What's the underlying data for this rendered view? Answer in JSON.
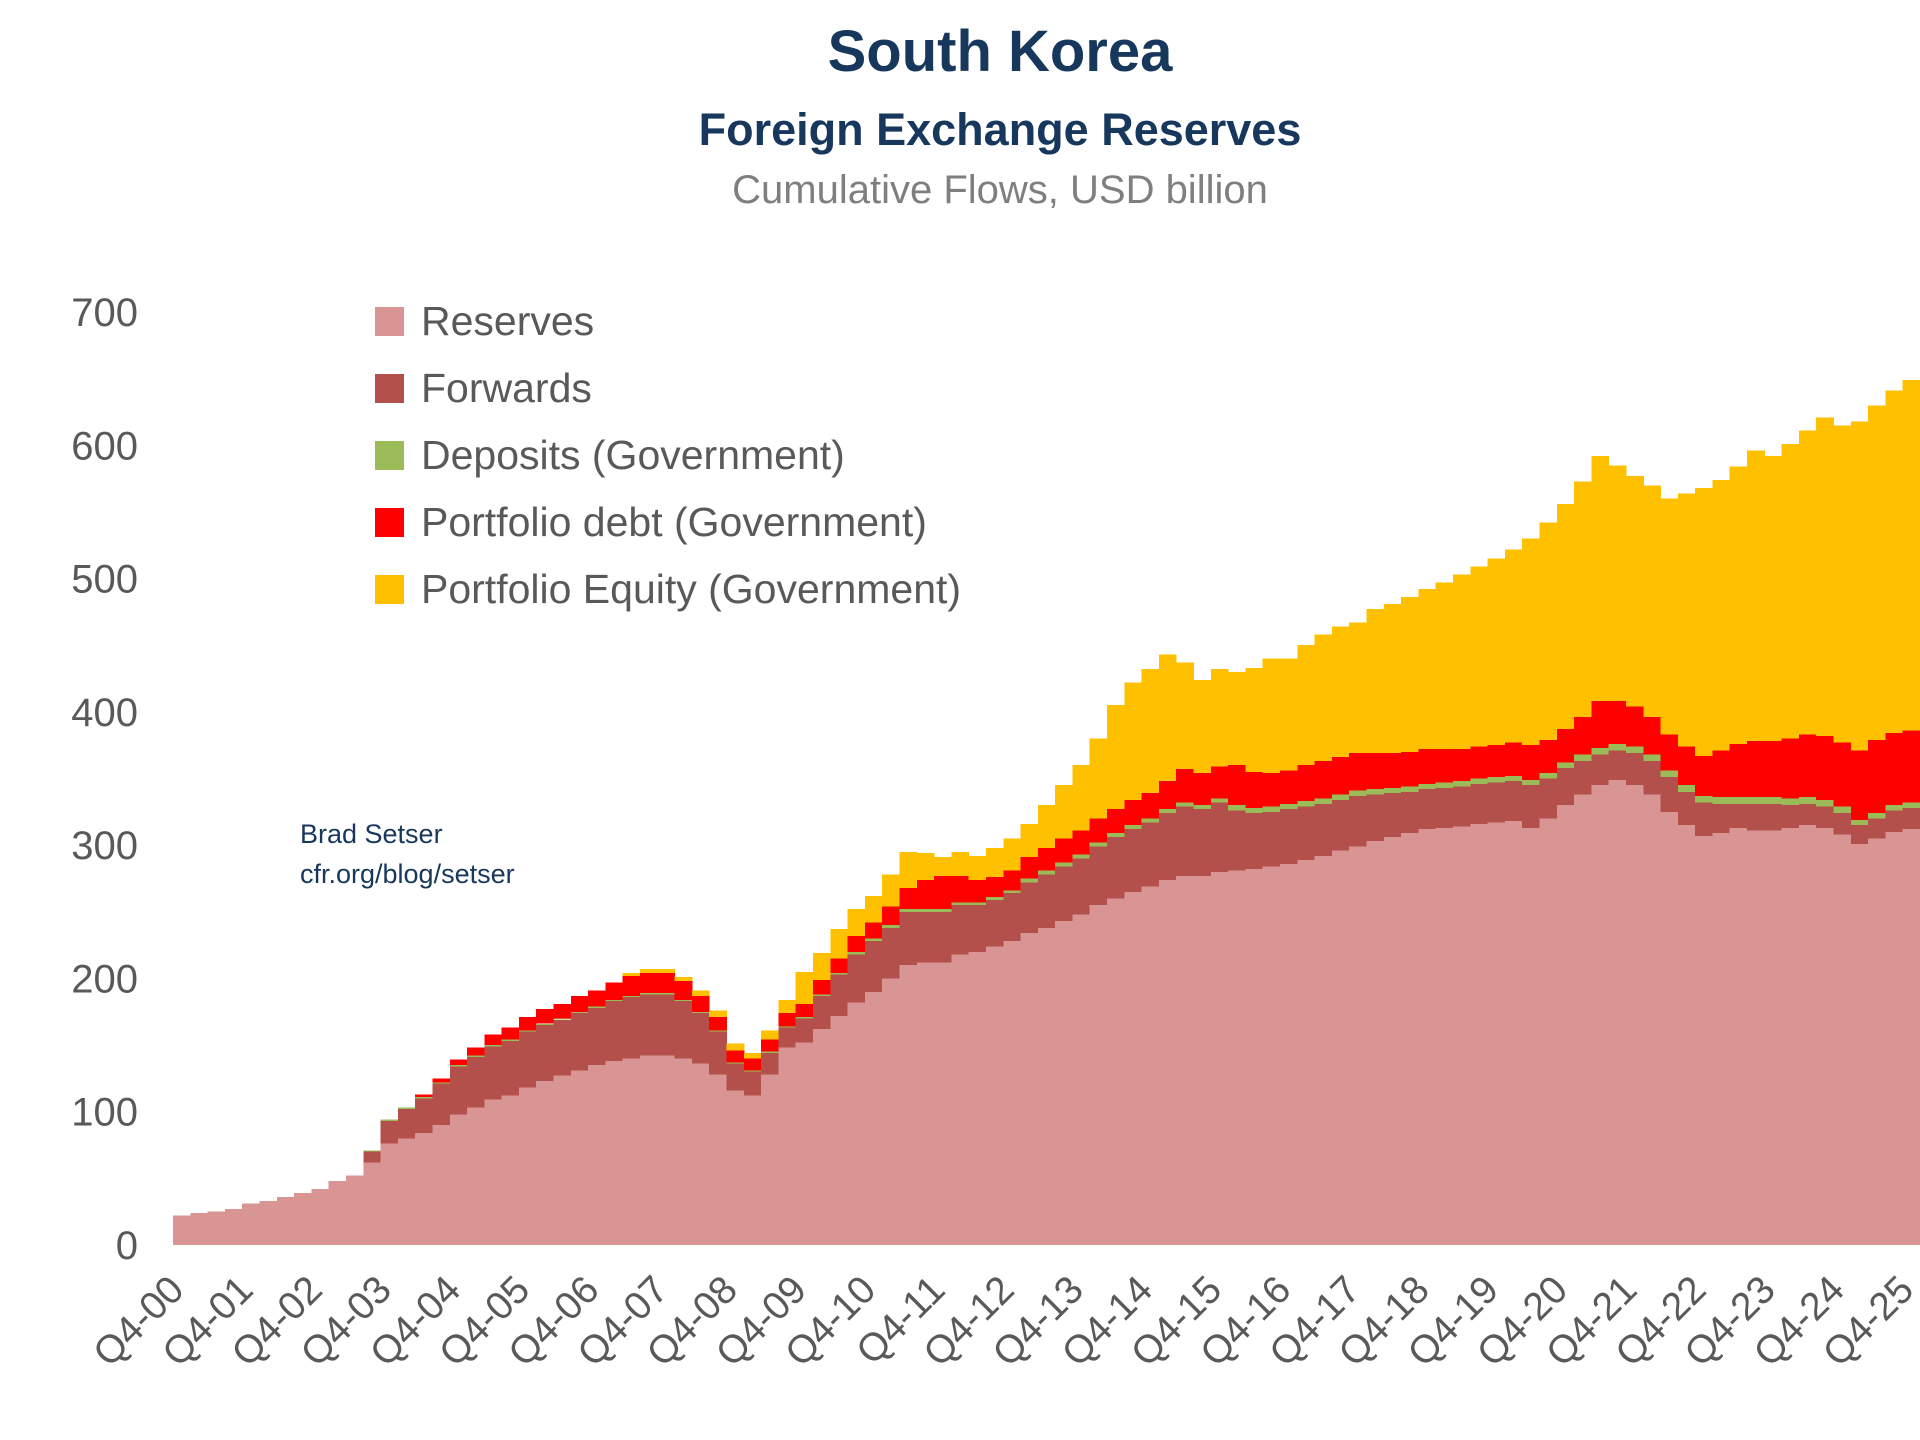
{
  "colors": {
    "background": "#FFFFFF",
    "title_text": "#17375D",
    "axis_text": "#595959",
    "legend_text": "#595959",
    "units_text": "#7F7F7F",
    "annotation_text": "#17375D"
  },
  "annotation": {
    "line1": "Brad Setser",
    "line2": "cfr.org/blog/setser"
  },
  "chart_data": {
    "type": "bar",
    "stacked": true,
    "title": "South Korea",
    "subtitle": "Foreign Exchange Reserves",
    "units_label": "Cumulative Flows, USD billion",
    "grid": false,
    "legend_position": "upper-left-inside",
    "x_axis": {
      "start": "Q4-2000",
      "end": "Q4-2025",
      "frequency": "quarterly",
      "n_bars": 101,
      "tick_every_n_bars": 4,
      "tick_labels": [
        "Q4-00",
        "Q4-01",
        "Q4-02",
        "Q4-03",
        "Q4-04",
        "Q4-05",
        "Q4-06",
        "Q4-07",
        "Q4-08",
        "Q4-09",
        "Q4-10",
        "Q4-11",
        "Q4-12",
        "Q4-13",
        "Q4-14",
        "Q4-15",
        "Q4-16",
        "Q4-17",
        "Q4-18",
        "Q4-19",
        "Q4-20",
        "Q4-21",
        "Q4-22",
        "Q4-23",
        "Q4-24",
        "Q4-25"
      ]
    },
    "y_axis": {
      "min": 0,
      "max": 700,
      "tick_interval": 100,
      "ticks": [
        0,
        100,
        200,
        300,
        400,
        500,
        600,
        700
      ]
    },
    "series": [
      {
        "name": "Reserves",
        "color": "#D99594",
        "values": [
          22,
          24,
          25,
          27,
          31,
          33,
          36,
          39,
          42,
          48,
          52,
          62,
          76,
          80,
          84,
          90,
          98,
          103,
          109,
          112,
          118,
          123,
          127,
          131,
          135,
          138,
          140,
          142,
          142,
          140,
          136,
          128,
          116,
          112,
          128,
          148,
          152,
          162,
          172,
          182,
          190,
          200,
          210,
          212,
          212,
          218,
          220,
          224,
          228,
          234,
          238,
          243,
          248,
          255,
          260,
          265,
          269,
          274,
          277,
          277,
          280,
          281,
          282,
          284,
          286,
          289,
          292,
          296,
          299,
          303,
          306,
          309,
          312,
          313,
          314,
          316,
          317,
          318,
          313,
          320,
          330,
          338,
          345,
          349,
          345,
          338,
          325,
          315,
          307,
          309,
          313,
          311,
          311,
          313,
          315,
          313,
          308,
          301,
          305,
          310,
          312
        ]
      },
      {
        "name": "Forwards",
        "color": "#B4504B",
        "values": [
          0,
          0,
          0,
          0,
          0,
          0,
          0,
          0,
          0,
          0,
          0,
          8,
          17,
          22,
          26,
          31,
          36,
          38,
          40,
          41,
          42,
          42,
          42,
          43,
          43,
          45,
          46,
          46,
          46,
          43,
          38,
          32,
          20,
          18,
          16,
          15,
          18,
          25,
          31,
          36,
          38,
          38,
          40,
          38,
          38,
          37,
          35,
          35,
          36,
          38,
          40,
          41,
          42,
          44,
          46,
          47,
          48,
          50,
          52,
          50,
          52,
          45,
          42,
          41,
          41,
          40,
          39,
          38,
          38,
          35,
          33,
          31,
          30,
          30,
          30,
          30,
          30,
          30,
          32,
          30,
          28,
          25,
          23,
          22,
          24,
          25,
          26,
          25,
          25,
          22,
          18,
          20,
          20,
          17,
          16,
          16,
          16,
          14,
          15,
          16,
          16
        ]
      },
      {
        "name": "Deposits (Government)",
        "color": "#9BBB59",
        "values": [
          0,
          0,
          0,
          0,
          0,
          0,
          0,
          0,
          0,
          0,
          0,
          1,
          1,
          1,
          1,
          1,
          1,
          1,
          1,
          1,
          1,
          1,
          1,
          1,
          1,
          1,
          1,
          1,
          1,
          1,
          1,
          1,
          1,
          1,
          1,
          1,
          1,
          1,
          1,
          2,
          2,
          2,
          2,
          2,
          2,
          2,
          2,
          2,
          2,
          3,
          3,
          3,
          3,
          3,
          3,
          3,
          3,
          3,
          3,
          3,
          3,
          4,
          4,
          4,
          4,
          4,
          4,
          4,
          4,
          4,
          4,
          4,
          4,
          4,
          4,
          4,
          4,
          4,
          4,
          4,
          4,
          5,
          5,
          5,
          5,
          5,
          5,
          5,
          5,
          5,
          5,
          5,
          5,
          5,
          5,
          5,
          5,
          4,
          4,
          4,
          4
        ]
      },
      {
        "name": "Portfolio debt (Government)",
        "color": "#FF0000",
        "values": [
          0,
          0,
          0,
          0,
          0,
          0,
          0,
          0,
          0,
          0,
          0,
          0,
          0,
          0,
          2,
          3,
          4,
          6,
          8,
          9,
          10,
          11,
          11,
          12,
          12,
          13,
          15,
          15,
          15,
          14,
          12,
          10,
          9,
          9,
          9,
          10,
          10,
          11,
          11,
          12,
          12,
          14,
          16,
          22,
          25,
          20,
          17,
          15,
          15,
          16,
          17,
          18,
          18,
          18,
          18,
          19,
          19,
          21,
          25,
          24,
          24,
          30,
          27,
          25,
          25,
          27,
          28,
          28,
          28,
          27,
          26,
          26,
          26,
          25,
          24,
          24,
          24,
          25,
          26,
          25,
          25,
          28,
          35,
          32,
          30,
          28,
          27,
          29,
          30,
          35,
          40,
          42,
          42,
          45,
          47,
          48,
          48,
          52,
          55,
          54,
          54
        ]
      },
      {
        "name": "Portfolio Equity (Government)",
        "color": "#FFC000",
        "values": [
          0,
          0,
          0,
          0,
          0,
          0,
          0,
          0,
          0,
          0,
          0,
          0,
          0,
          0,
          0,
          0,
          0,
          0,
          0,
          0,
          0,
          0,
          0,
          0,
          0,
          0,
          2,
          3,
          3,
          3,
          4,
          5,
          5,
          4,
          7,
          10,
          24,
          20,
          22,
          20,
          20,
          24,
          27,
          20,
          14,
          18,
          18,
          22,
          24,
          25,
          32,
          40,
          49,
          60,
          78,
          88,
          93,
          95,
          80,
          70,
          73,
          70,
          78,
          86,
          84,
          90,
          95,
          98,
          98,
          108,
          112,
          116,
          120,
          125,
          131,
          135,
          140,
          145,
          155,
          163,
          169,
          177,
          184,
          177,
          173,
          174,
          177,
          190,
          201,
          203,
          208,
          218,
          214,
          221,
          228,
          239,
          238,
          247,
          251,
          257,
          263
        ]
      }
    ]
  }
}
